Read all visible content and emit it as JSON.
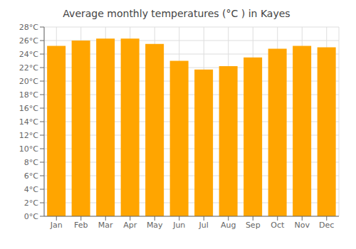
{
  "chart_data": {
    "type": "bar",
    "title": "Average monthly temperatures (°C ) in Kayes",
    "categories": [
      "Jan",
      "Feb",
      "Mar",
      "Apr",
      "May",
      "Jun",
      "Jul",
      "Aug",
      "Sep",
      "Oct",
      "Nov",
      "Dec"
    ],
    "values": [
      25.2,
      26.0,
      26.3,
      26.3,
      25.5,
      23.0,
      21.7,
      22.2,
      23.5,
      24.8,
      25.2,
      25.0
    ],
    "color": "#FFA500",
    "ylim": [
      0,
      28
    ],
    "yticks": [
      {
        "value": 0,
        "label": "0°C"
      },
      {
        "value": 2,
        "label": "2°C"
      },
      {
        "value": 4,
        "label": "4°C"
      },
      {
        "value": 6,
        "label": "6°C"
      },
      {
        "value": 8,
        "label": "8°C"
      },
      {
        "value": 10,
        "label": "10°C"
      },
      {
        "value": 12,
        "label": "12°C"
      },
      {
        "value": 14,
        "label": "14°C"
      },
      {
        "value": 16,
        "label": "16°C"
      },
      {
        "value": 18,
        "label": "18°C"
      },
      {
        "value": 20,
        "label": "20°C"
      },
      {
        "value": 22,
        "label": "22°C"
      },
      {
        "value": 24,
        "label": "24°C"
      },
      {
        "value": 26,
        "label": "26°C"
      },
      {
        "value": 28,
        "label": "28°C"
      }
    ],
    "grid": true
  }
}
